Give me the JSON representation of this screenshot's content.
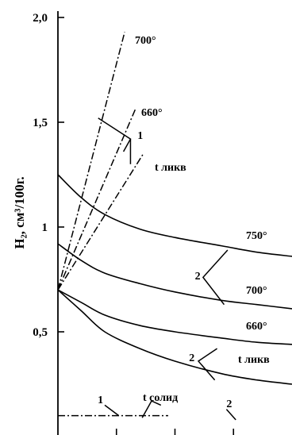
{
  "chart_data": {
    "type": "line",
    "ylabel": "H₂, см³/100г.",
    "ylim": [
      0,
      2.0
    ],
    "yticks": [
      {
        "value": 0.5,
        "label": "0,5"
      },
      {
        "value": 1.0,
        "label": "1"
      },
      {
        "value": 1.5,
        "label": "1,5"
      },
      {
        "value": 2.0,
        "label": "2,0"
      }
    ],
    "grid": false,
    "curves": [
      {
        "label": "750°",
        "style": "solid",
        "points": [
          [
            0,
            1.25
          ],
          [
            0.1,
            1.14
          ],
          [
            0.2,
            1.06
          ],
          [
            0.35,
            0.99
          ],
          [
            0.5,
            0.95
          ],
          [
            0.7,
            0.91
          ],
          [
            0.85,
            0.88
          ],
          [
            1.0,
            0.86
          ]
        ]
      },
      {
        "label": "700°",
        "style": "solid",
        "points": [
          [
            0,
            0.92
          ],
          [
            0.1,
            0.84
          ],
          [
            0.2,
            0.78
          ],
          [
            0.35,
            0.73
          ],
          [
            0.5,
            0.69
          ],
          [
            0.7,
            0.65
          ],
          [
            0.85,
            0.63
          ],
          [
            1.0,
            0.61
          ]
        ]
      },
      {
        "label": "660°",
        "style": "solid",
        "points": [
          [
            0,
            0.7
          ],
          [
            0.1,
            0.64
          ],
          [
            0.2,
            0.58
          ],
          [
            0.35,
            0.53
          ],
          [
            0.5,
            0.5
          ],
          [
            0.7,
            0.47
          ],
          [
            0.85,
            0.45
          ],
          [
            1.0,
            0.44
          ]
        ]
      },
      {
        "label": "t ликв",
        "style": "solid",
        "points": [
          [
            0,
            0.7
          ],
          [
            0.1,
            0.6
          ],
          [
            0.2,
            0.5
          ],
          [
            0.35,
            0.42
          ],
          [
            0.5,
            0.36
          ],
          [
            0.7,
            0.3
          ],
          [
            0.85,
            0.27
          ],
          [
            1.0,
            0.25
          ]
        ]
      }
    ],
    "rays": [
      {
        "label": "700°",
        "style": "dashdot",
        "points": [
          [
            0,
            0.7
          ],
          [
            0.285,
            1.93
          ]
        ]
      },
      {
        "label": "660°",
        "style": "dashdot",
        "points": [
          [
            0,
            0.7
          ],
          [
            0.33,
            1.56
          ]
        ]
      },
      {
        "label": "t ликв",
        "style": "dashdot",
        "points": [
          [
            0,
            0.7
          ],
          [
            0.365,
            1.35
          ]
        ]
      }
    ],
    "baseline": {
      "label": "t солид",
      "style": "dashdot",
      "y": 0.1
    },
    "annotations": [
      {
        "text": "1",
        "points": [
          [
            0.172,
            1.52
          ],
          [
            0.31,
            1.42
          ],
          [
            0.28,
            1.36
          ]
        ],
        "text_at": [
          0.34,
          1.42
        ]
      },
      {
        "text": "1",
        "points": [
          [
            0.31,
            1.42
          ],
          [
            0.31,
            1.3
          ]
        ]
      },
      {
        "text": "2",
        "points": [
          [
            0.725,
            0.89
          ],
          [
            0.62,
            0.76
          ],
          [
            0.71,
            0.63
          ]
        ],
        "text_at": [
          0.585,
          0.75
        ]
      },
      {
        "text": "2",
        "points": [
          [
            0.68,
            0.42
          ],
          [
            0.6,
            0.36
          ],
          [
            0.67,
            0.27
          ]
        ],
        "text_at": [
          0.56,
          0.36
        ]
      },
      {
        "text": "1",
        "points": [
          [
            0.2,
            0.15
          ],
          [
            0.26,
            0.1
          ]
        ],
        "text_at": [
          0.17,
          0.16
        ]
      },
      {
        "text": "2",
        "points": [
          [
            0.72,
            0.13
          ],
          [
            0.76,
            0.08
          ]
        ],
        "text_at": [
          0.72,
          0.14
        ]
      },
      {
        "text": "",
        "points": [
          [
            0.36,
            0.09
          ],
          [
            0.4,
            0.17
          ],
          [
            0.44,
            0.15
          ]
        ]
      }
    ]
  }
}
